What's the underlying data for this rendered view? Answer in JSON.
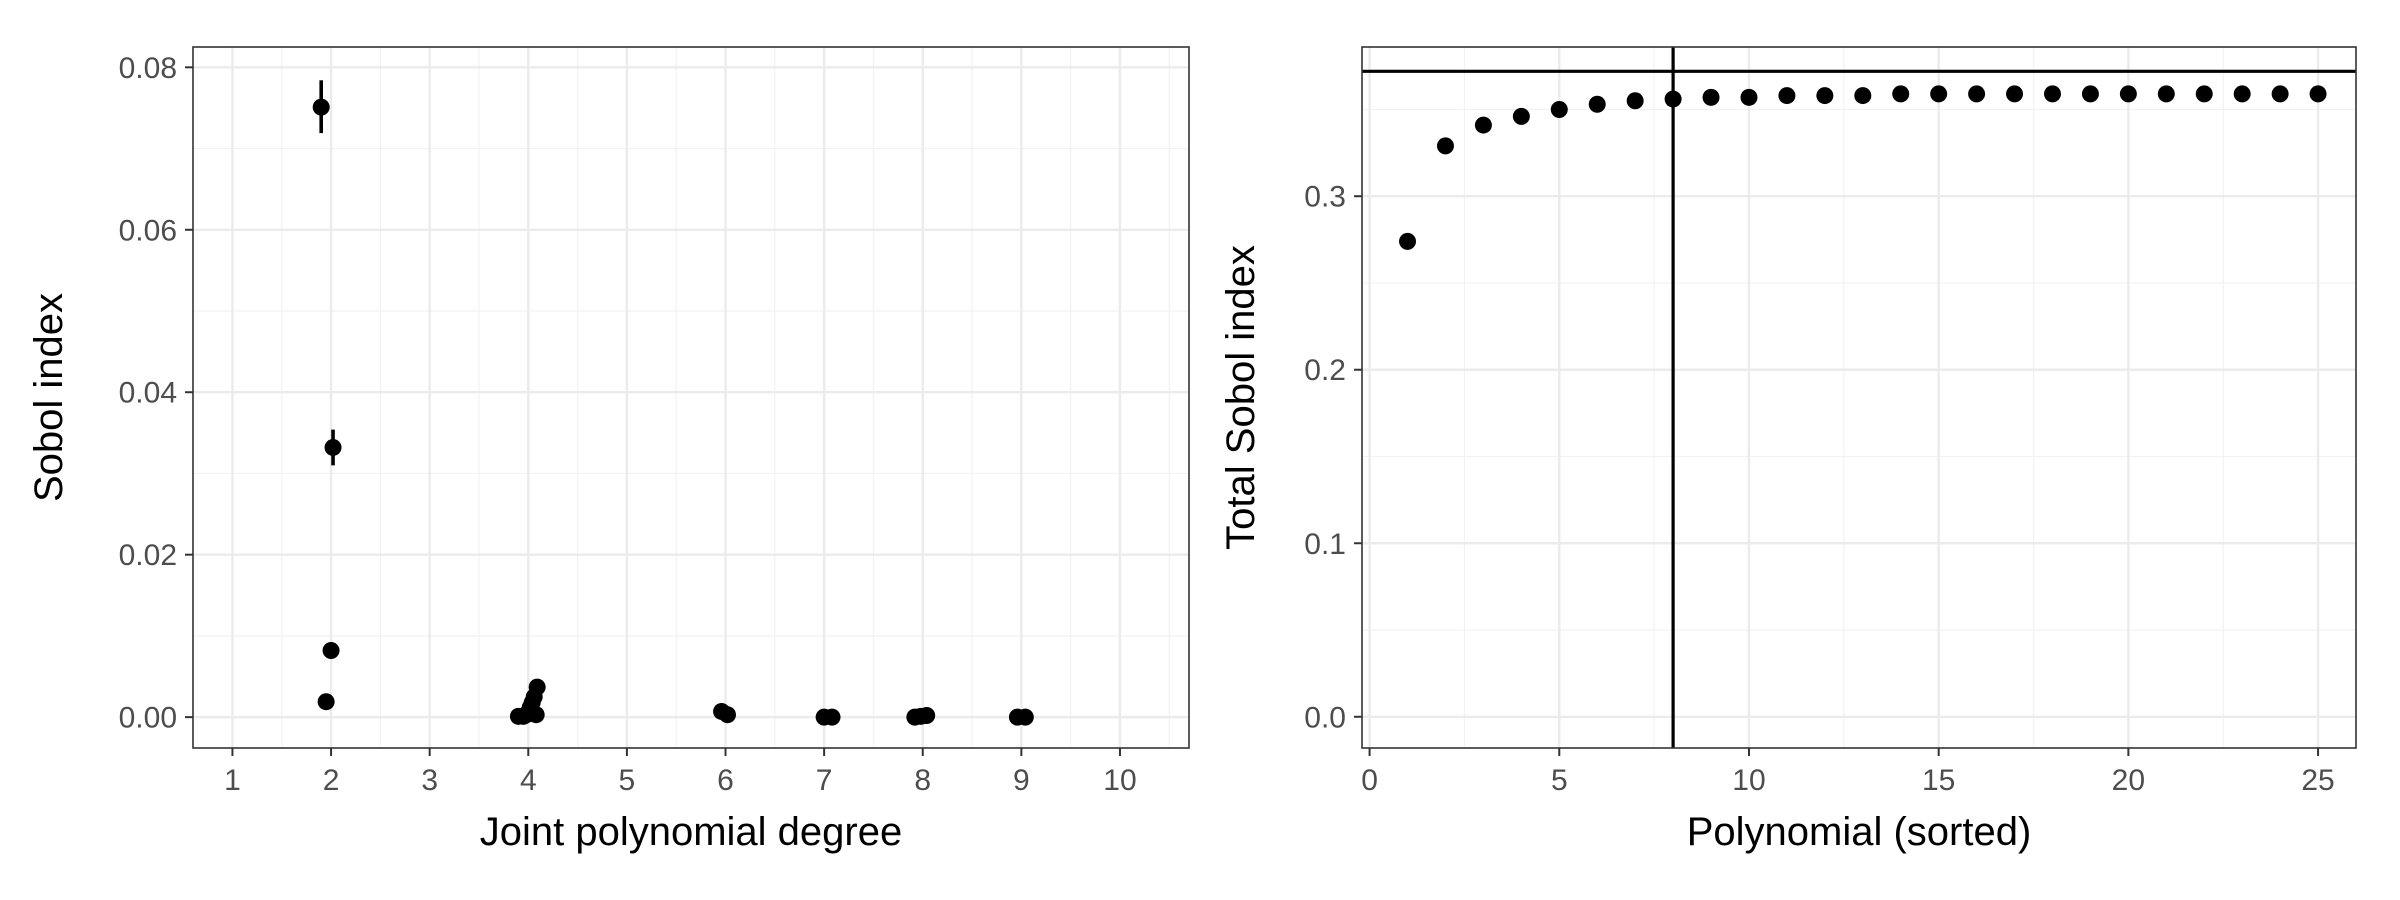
{
  "chart_data": [
    {
      "type": "scatter",
      "xlabel": "Joint polynomial degree",
      "ylabel": "Sobol index",
      "xlim": [
        0.6,
        10.7
      ],
      "ylim": [
        -0.0038,
        0.0825
      ],
      "x_ticks": [
        "1",
        "2",
        "3",
        "4",
        "5",
        "6",
        "7",
        "8",
        "9",
        "10"
      ],
      "y_ticks": [
        "0.00",
        "0.02",
        "0.04",
        "0.06",
        "0.08"
      ],
      "grid": true,
      "points": [
        {
          "x": 1.9,
          "y": 0.0751,
          "err": [
            0.0719,
            0.0784
          ]
        },
        {
          "x": 2.02,
          "y": 0.0332,
          "err": [
            0.031,
            0.0354
          ]
        },
        {
          "x": 2.0,
          "y": 0.0082
        },
        {
          "x": 1.95,
          "y": 0.0019
        },
        {
          "x": 3.9,
          "y": 0.0001
        },
        {
          "x": 3.95,
          "y": 0.0001
        },
        {
          "x": 3.98,
          "y": 0.0003
        },
        {
          "x": 4.0,
          "y": 0.0006
        },
        {
          "x": 4.02,
          "y": 0.0012
        },
        {
          "x": 4.04,
          "y": 0.0018
        },
        {
          "x": 4.06,
          "y": 0.0025
        },
        {
          "x": 4.09,
          "y": 0.0037
        },
        {
          "x": 4.08,
          "y": 0.0003
        },
        {
          "x": 5.96,
          "y": 0.0007
        },
        {
          "x": 6.02,
          "y": 0.0003
        },
        {
          "x": 7.0,
          "y": 0.0
        },
        {
          "x": 7.08,
          "y": 0.0
        },
        {
          "x": 7.92,
          "y": 0.0
        },
        {
          "x": 7.98,
          "y": 0.0001
        },
        {
          "x": 8.04,
          "y": 0.0002
        },
        {
          "x": 8.96,
          "y": 0.0
        },
        {
          "x": 9.04,
          "y": 0.0
        }
      ]
    },
    {
      "type": "scatter",
      "xlabel": "Polynomial (sorted)",
      "ylabel": "Total Sobol index",
      "xlim": [
        -0.2,
        26.0
      ],
      "ylim": [
        -0.018,
        0.386
      ],
      "x_ticks": [
        "0",
        "5",
        "10",
        "15",
        "20",
        "25"
      ],
      "y_ticks": [
        "0.0",
        "0.1",
        "0.2",
        "0.3"
      ],
      "grid": true,
      "hline": 0.372,
      "vline": 8,
      "points": [
        {
          "x": 1,
          "y": 0.274
        },
        {
          "x": 2,
          "y": 0.329
        },
        {
          "x": 3,
          "y": 0.341
        },
        {
          "x": 4,
          "y": 0.346
        },
        {
          "x": 5,
          "y": 0.35
        },
        {
          "x": 6,
          "y": 0.353
        },
        {
          "x": 7,
          "y": 0.355
        },
        {
          "x": 8,
          "y": 0.356
        },
        {
          "x": 9,
          "y": 0.357
        },
        {
          "x": 10,
          "y": 0.357
        },
        {
          "x": 11,
          "y": 0.358
        },
        {
          "x": 12,
          "y": 0.358
        },
        {
          "x": 13,
          "y": 0.358
        },
        {
          "x": 14,
          "y": 0.359
        },
        {
          "x": 15,
          "y": 0.359
        },
        {
          "x": 16,
          "y": 0.359
        },
        {
          "x": 17,
          "y": 0.359
        },
        {
          "x": 18,
          "y": 0.359
        },
        {
          "x": 19,
          "y": 0.359
        },
        {
          "x": 20,
          "y": 0.359
        },
        {
          "x": 21,
          "y": 0.359
        },
        {
          "x": 22,
          "y": 0.359
        },
        {
          "x": 23,
          "y": 0.359
        },
        {
          "x": 24,
          "y": 0.359
        },
        {
          "x": 25,
          "y": 0.359
        }
      ]
    }
  ]
}
